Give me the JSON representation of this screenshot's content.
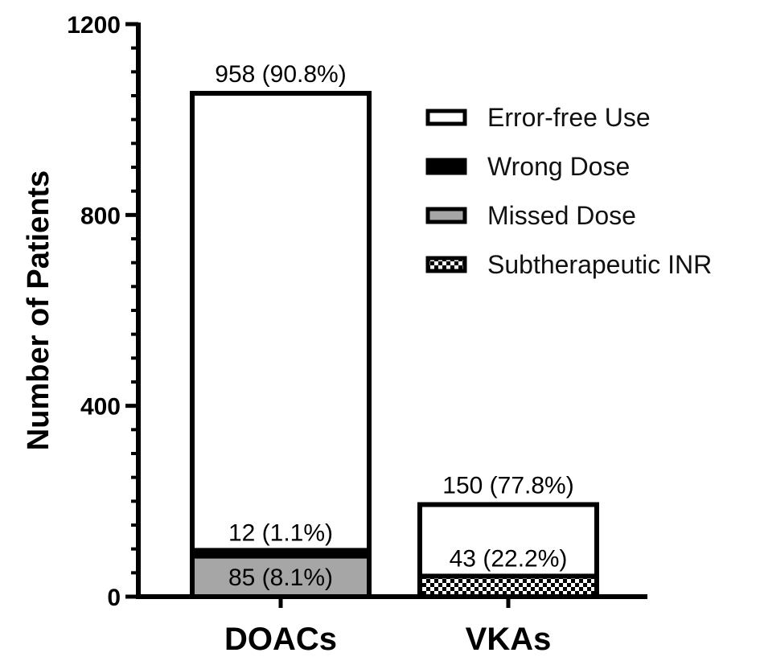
{
  "chart_data": {
    "type": "bar",
    "stacked": true,
    "title": "",
    "xlabel": "",
    "ylabel": "Number of Patients",
    "ylim": [
      0,
      1200
    ],
    "yticks": [
      0,
      400,
      800,
      1200
    ],
    "categories": [
      "DOACs",
      "VKAs"
    ],
    "series": [
      {
        "name": "Subtherapeutic INR",
        "values": [
          0,
          43
        ],
        "labels": [
          "",
          "43 (22.2%)"
        ],
        "fill": "checker"
      },
      {
        "name": "Missed Dose",
        "values": [
          85,
          0
        ],
        "labels": [
          "85 (8.1%)",
          ""
        ],
        "fill": "#a6a6a6"
      },
      {
        "name": "Wrong Dose",
        "values": [
          12,
          0
        ],
        "labels": [
          "12 (1.1%)",
          ""
        ],
        "fill": "#000000"
      },
      {
        "name": "Error-free Use",
        "values": [
          958,
          150
        ],
        "labels": [
          "958 (90.8%)",
          "150 (77.8%)"
        ],
        "fill": "#ffffff"
      }
    ],
    "legend": {
      "position": "top-right",
      "order": [
        "Error-free Use",
        "Wrong Dose",
        "Missed Dose",
        "Subtherapeutic INR"
      ]
    },
    "grid": false
  }
}
